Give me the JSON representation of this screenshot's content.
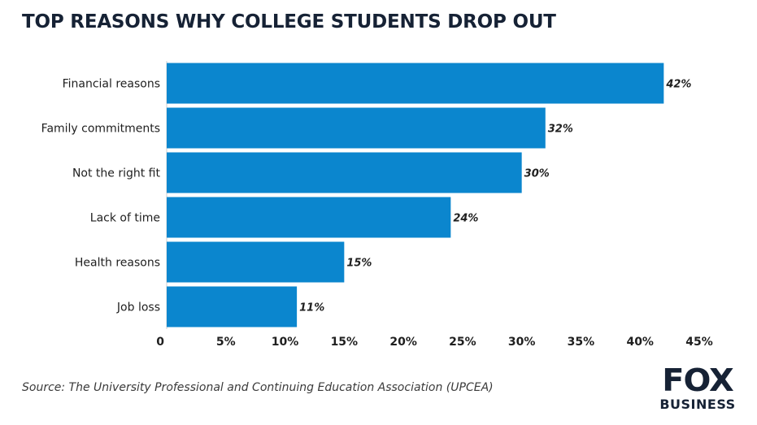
{
  "title": "TOP REASONS WHY COLLEGE STUDENTS DROP OUT",
  "source": "Source: The University Professional and Continuing Education Association (UPCEA)",
  "logo": {
    "line1": "FOX",
    "line2": "BUSINESS"
  },
  "colors": {
    "bar": "#0b86ce",
    "title": "#162235",
    "axis": "#cfcfcf"
  },
  "chart_data": {
    "type": "bar",
    "orientation": "horizontal",
    "categories": [
      "Financial reasons",
      "Family commitments",
      "Not the right fit",
      "Lack of time",
      "Health reasons",
      "Job loss"
    ],
    "values": [
      42,
      32,
      30,
      24,
      15,
      11
    ],
    "data_labels": [
      "42%",
      "32%",
      "30%",
      "24%",
      "15%",
      "11%"
    ],
    "x_ticks": [
      0,
      5,
      10,
      15,
      20,
      25,
      30,
      35,
      40,
      45
    ],
    "x_tick_labels": [
      "0",
      "5%",
      "10%",
      "15%",
      "20%",
      "25%",
      "30%",
      "35%",
      "40%",
      "45%"
    ],
    "xlim": [
      0,
      45
    ],
    "grid": false
  }
}
